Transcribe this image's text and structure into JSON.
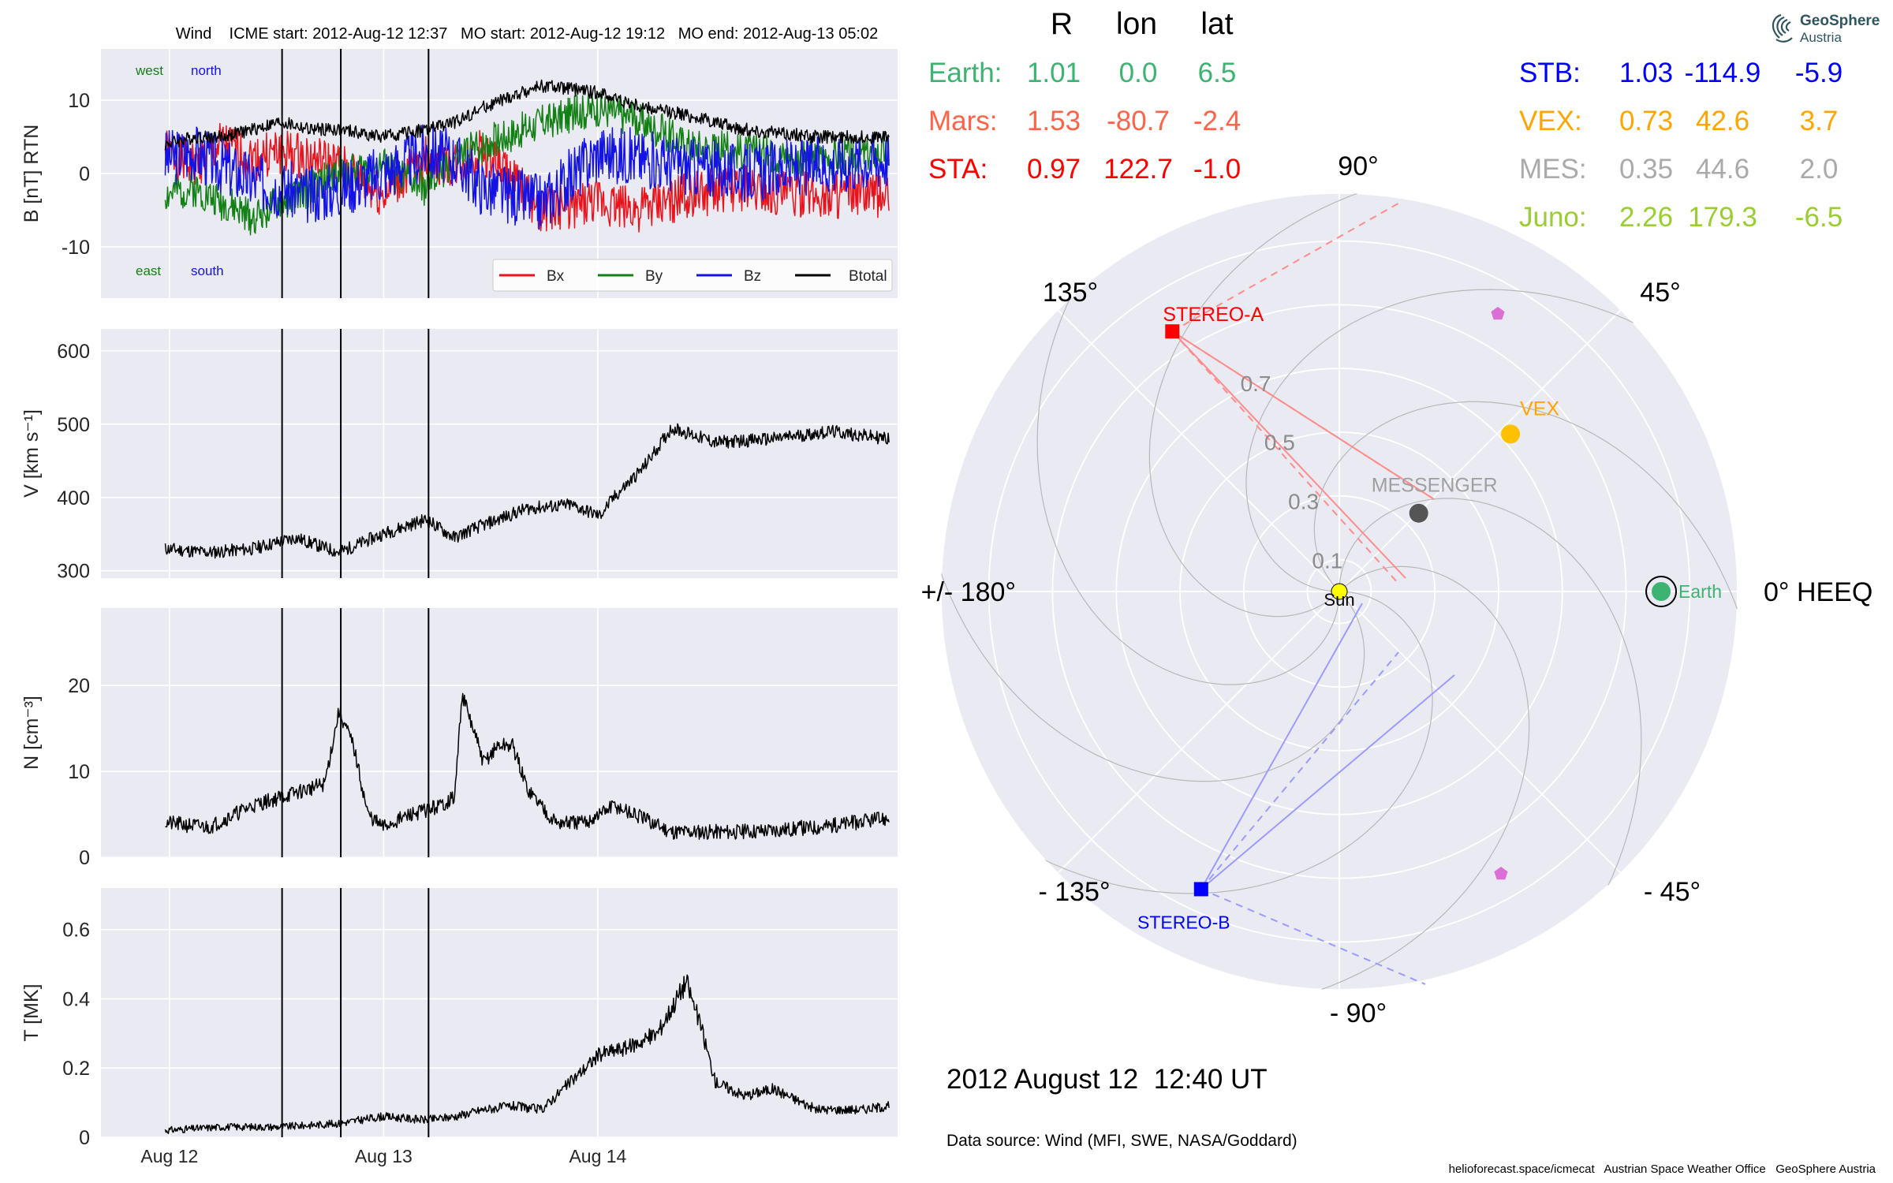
{
  "chart_data": [
    {
      "type": "line",
      "panel": "magnetic field",
      "title": "Wind    ICME start: 2012-Aug-12 12:37   MO start: 2012-Aug-12 19:12   MO end: 2012-Aug-13 05:02",
      "ylabel": "B [nT] RTN",
      "ylim": [
        -17,
        17
      ],
      "yticks": [
        10,
        0,
        -10
      ],
      "corner_labels": {
        "west": "west",
        "north": "north",
        "east": "east",
        "south": "south"
      },
      "legend": [
        "Bx",
        "By",
        "Bz",
        "Btotal"
      ],
      "legend_placement": "lower-right",
      "grid": true,
      "series": [
        {
          "name": "Bx",
          "color": "#e8141c",
          "x": [
            0.0,
            0.2,
            0.4,
            0.6,
            0.8,
            1.0,
            1.2,
            1.5,
            1.8,
            2.0,
            2.2,
            2.6,
            3.0,
            3.3,
            3.6,
            4.0,
            4.5,
            5.0
          ],
          "values": [
            3,
            1,
            4,
            2,
            3,
            2,
            1,
            -3,
            2,
            1,
            3,
            -5,
            -4,
            -5,
            -3,
            -2,
            -3,
            -3
          ]
        },
        {
          "name": "By",
          "color": "#138015",
          "x": [
            0.0,
            0.2,
            0.4,
            0.6,
            0.8,
            1.0,
            1.2,
            1.5,
            1.8,
            2.0,
            2.2,
            2.6,
            3.0,
            3.3,
            3.6,
            4.0,
            4.5,
            5.0
          ],
          "values": [
            -3,
            -2,
            -4,
            -6,
            -4,
            -2,
            0,
            1,
            -2,
            2,
            4,
            7,
            9,
            7,
            4,
            3,
            2,
            3
          ]
        },
        {
          "name": "Bz",
          "color": "#1313e6",
          "x": [
            0.0,
            0.2,
            0.4,
            0.6,
            0.8,
            1.0,
            1.2,
            1.5,
            1.8,
            2.0,
            2.2,
            2.6,
            3.0,
            3.3,
            3.6,
            4.0,
            4.5,
            5.0
          ],
          "values": [
            2,
            3,
            1,
            -1,
            -2,
            -3,
            -2,
            0,
            3,
            2,
            -2,
            -4,
            3,
            2,
            1,
            0,
            1,
            2
          ]
        },
        {
          "name": "Btotal",
          "color": "#000000",
          "x": [
            0.0,
            0.2,
            0.4,
            0.6,
            0.8,
            1.0,
            1.2,
            1.5,
            1.8,
            2.0,
            2.2,
            2.6,
            3.0,
            3.3,
            3.6,
            4.0,
            4.5,
            5.0
          ],
          "values": [
            4,
            5,
            5,
            6,
            7,
            6,
            6,
            5,
            6,
            7,
            9,
            12,
            11,
            9,
            8,
            6,
            5,
            5
          ]
        }
      ]
    },
    {
      "type": "line",
      "panel": "speed",
      "ylabel": "V [km s⁻¹]",
      "ylim": [
        290,
        630
      ],
      "yticks": [
        600,
        500,
        400,
        300
      ],
      "grid": true,
      "series": [
        {
          "color": "#000000",
          "x": [
            0.0,
            0.3,
            0.6,
            0.9,
            1.2,
            1.5,
            1.8,
            2.0,
            2.1,
            2.3,
            2.5,
            2.8,
            3.0,
            3.1,
            3.3,
            3.5,
            3.8,
            4.2,
            4.6,
            5.0
          ],
          "values": [
            330,
            325,
            330,
            345,
            325,
            350,
            370,
            345,
            355,
            370,
            385,
            390,
            375,
            400,
            440,
            495,
            475,
            480,
            490,
            480
          ]
        }
      ]
    },
    {
      "type": "line",
      "panel": "density",
      "ylabel": "N [cm⁻³]",
      "ylim": [
        0,
        29
      ],
      "yticks": [
        20,
        10,
        0
      ],
      "grid": true,
      "series": [
        {
          "color": "#000000",
          "x": [
            0.0,
            0.3,
            0.6,
            0.9,
            1.1,
            1.2,
            1.3,
            1.4,
            1.5,
            1.7,
            1.9,
            2.0,
            2.05,
            2.2,
            2.3,
            2.4,
            2.5,
            2.7,
            2.9,
            3.1,
            3.3,
            3.5,
            4.0,
            4.5,
            5.0
          ],
          "values": [
            4,
            3.5,
            6,
            7.5,
            8.5,
            17,
            13,
            5,
            3.5,
            5,
            6,
            7,
            19,
            11,
            13,
            13,
            8,
            4,
            4,
            6,
            4.5,
            3,
            3,
            3.5,
            4.5
          ]
        }
      ]
    },
    {
      "type": "line",
      "panel": "temperature",
      "ylabel": "T [MK]",
      "ylim": [
        0,
        0.72
      ],
      "yticks": [
        0.6,
        0.4,
        0.2,
        0.0
      ],
      "grid": true,
      "series": [
        {
          "color": "#000000",
          "x": [
            0.0,
            0.4,
            0.8,
            1.2,
            1.5,
            1.8,
            2.0,
            2.2,
            2.4,
            2.6,
            2.8,
            3.0,
            3.2,
            3.4,
            3.6,
            3.7,
            3.8,
            4.0,
            4.2,
            4.5,
            4.8,
            5.0
          ],
          "values": [
            0.02,
            0.03,
            0.03,
            0.04,
            0.06,
            0.05,
            0.06,
            0.08,
            0.09,
            0.08,
            0.16,
            0.24,
            0.26,
            0.3,
            0.45,
            0.32,
            0.16,
            0.12,
            0.14,
            0.08,
            0.08,
            0.09
          ]
        }
      ]
    },
    {
      "type": "scatter",
      "panel": "heliospheric positions (polar)",
      "angular_ticks": [
        "90°",
        "45°",
        "0° HEEQ",
        "- 45°",
        "- 90°",
        "- 135°",
        "+/- 180°",
        "135°"
      ],
      "radial_ticks": [
        "0.1",
        "0.3",
        "0.5",
        "0.7"
      ],
      "rmax": 1.25,
      "objects": [
        {
          "name": "Sun",
          "r": 0.0,
          "lon": 0.0,
          "color": "#ffff00",
          "marker": "circle"
        },
        {
          "name": "Earth",
          "r": 1.01,
          "lon": 0.0,
          "color": "#3cb371",
          "marker": "circle"
        },
        {
          "name": "VEX",
          "r": 0.73,
          "lon": 42.6,
          "color": "#ffc000",
          "marker": "circle"
        },
        {
          "name": "MESSENGER",
          "r": 0.35,
          "lon": 44.6,
          "color": "#555555",
          "marker": "circle"
        },
        {
          "name": "STEREO-A",
          "r": 0.97,
          "lon": 122.7,
          "color": "#ff0000",
          "marker": "square"
        },
        {
          "name": "STEREO-B",
          "r": 1.03,
          "lon": -114.9,
          "color": "#0000ff",
          "marker": "square"
        }
      ]
    }
  ],
  "xaxis": {
    "tick_labels": [
      "Aug 12",
      "Aug 13",
      "Aug 14"
    ]
  },
  "event_times": [
    "2012-Aug-12 12:37",
    "2012-Aug-12 19:12",
    "2012-Aug-13 05:02"
  ],
  "position_table": {
    "headers": [
      "R",
      "lon",
      "lat"
    ],
    "left_rows": [
      {
        "name": "Earth:",
        "R": "1.01",
        "lon": "0.0",
        "lat": "6.5",
        "color": "#3cb371"
      },
      {
        "name": "Mars:",
        "R": "1.53",
        "lon": "-80.7",
        "lat": "-2.4",
        "color": "#ff6347"
      },
      {
        "name": "STA:",
        "R": "0.97",
        "lon": "122.7",
        "lat": "-1.0",
        "color": "#ff0000"
      }
    ],
    "right_rows": [
      {
        "name": "STB:",
        "R": "1.03",
        "lon": "-114.9",
        "lat": "-5.9",
        "color": "#0000ff"
      },
      {
        "name": "VEX:",
        "R": "0.73",
        "lon": "42.6",
        "lat": "3.7",
        "color": "#ffa500"
      },
      {
        "name": "MES:",
        "R": "0.35",
        "lon": "44.6",
        "lat": "2.0",
        "color": "#aaaaaa"
      },
      {
        "name": "Juno:",
        "R": "2.26",
        "lon": "179.3",
        "lat": "-6.5",
        "color": "#9acd32"
      }
    ]
  },
  "timestamp": "2012 August 12  12:40 UT",
  "source": "Data source: Wind (MFI, SWE, NASA/Goddard)",
  "footer": "helioforecast.space/icmecat   Austrian Space Weather Office   GeoSphere Austria",
  "logo": {
    "name": "GeoSphere",
    "sub": "Austria",
    "icon": "geosphere-logo-icon"
  },
  "colors": {
    "axes_bg": "#eaeaf2",
    "grid": "#ffffff",
    "stereo_a_lines": "#ff8c8c",
    "stereo_b_lines": "#9b9bff",
    "planet_marker": "#da70d6"
  }
}
